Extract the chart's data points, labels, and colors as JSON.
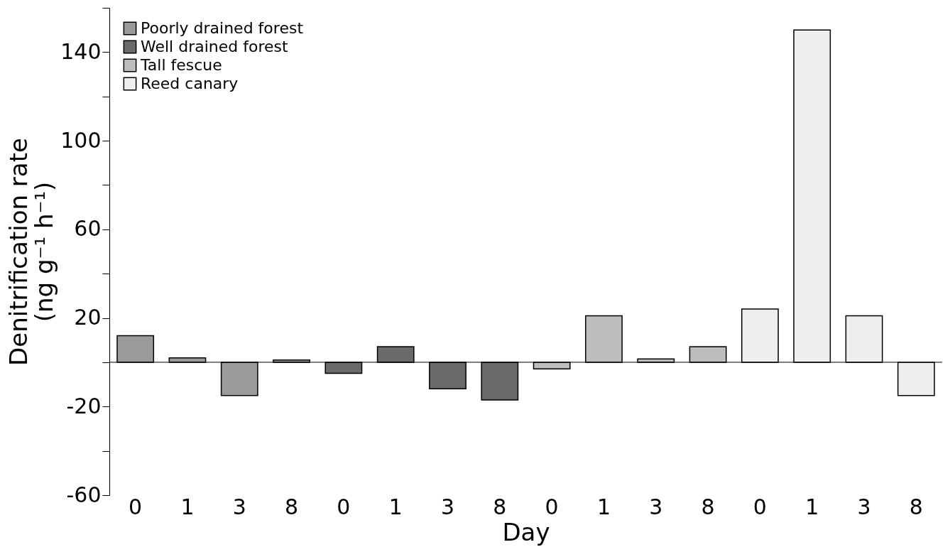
{
  "chart_data": {
    "type": "bar",
    "xlabel": "Day",
    "ylabel": "Denitrification rate\n(ng g⁻¹ h⁻¹)",
    "categories": [
      "0",
      "1",
      "3",
      "8",
      "0",
      "1",
      "3",
      "8",
      "0",
      "1",
      "3",
      "8",
      "0",
      "1",
      "3",
      "8"
    ],
    "series": [
      {
        "name": "Poorly drained forest",
        "color": "#9a9a9a",
        "values": [
          12,
          2,
          -15,
          1,
          null,
          null,
          null,
          null,
          null,
          null,
          null,
          null,
          null,
          null,
          null,
          null
        ]
      },
      {
        "name": "Well drained forest",
        "color": "#6a6a6a",
        "values": [
          null,
          null,
          null,
          null,
          -5,
          7,
          -12,
          -17,
          null,
          null,
          null,
          null,
          null,
          null,
          null,
          null
        ]
      },
      {
        "name": "Tall fescue",
        "color": "#bdbdbd",
        "values": [
          null,
          null,
          null,
          null,
          null,
          null,
          null,
          null,
          -3,
          21,
          1.5,
          7,
          null,
          null,
          null,
          null
        ]
      },
      {
        "name": "Reed canary",
        "color": "#eeeeee",
        "values": [
          null,
          null,
          null,
          null,
          null,
          null,
          null,
          null,
          null,
          null,
          null,
          null,
          24,
          150,
          21,
          -15
        ]
      }
    ],
    "ylim": [
      -60,
      160
    ],
    "yticks": [
      -60,
      {
        "value": -40,
        "label": null
      },
      -20,
      {
        "value": 0,
        "label": null
      },
      20,
      {
        "value": 40,
        "label": null
      },
      60,
      {
        "value": 80,
        "label": null
      },
      100,
      {
        "value": 120,
        "label": null
      },
      140,
      {
        "value": 160,
        "label": null
      }
    ],
    "ref_lines": [
      {
        "axis": "y",
        "value": 0,
        "color": "#000000"
      }
    ],
    "legend": "top left",
    "grid": false
  }
}
